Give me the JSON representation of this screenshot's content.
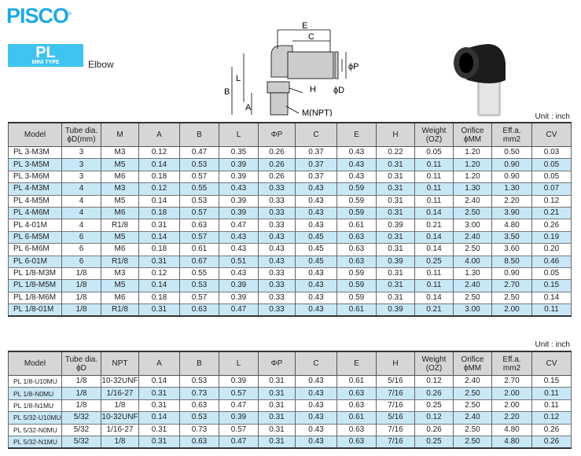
{
  "brand": {
    "logo": "PISCO"
  },
  "series": {
    "code": "PL",
    "subtitle": "MINI TYPE",
    "type": "Elbow"
  },
  "diagram": {
    "labels": [
      "E",
      "C",
      "B",
      "L",
      "A",
      "H",
      "M(NPT)",
      "ϕP",
      "ϕD"
    ]
  },
  "table1": {
    "unit": "Unit : inch",
    "headers": [
      "Model",
      "Tube dia.\nϕD(mm)",
      "M",
      "A",
      "B",
      "L",
      "ΦP",
      "C",
      "E",
      "H",
      "Weight\n(OZ)",
      "Orifice\nϕMM",
      "Eff.a.\nmm2",
      "CV"
    ],
    "rows": [
      [
        "PL 3-M3M",
        "3",
        "M3",
        "0.12",
        "0.47",
        "0.35",
        "0.26",
        "0.37",
        "0.43",
        "0.22",
        "0.05",
        "1.20",
        "0.50",
        "0.03"
      ],
      [
        "PL 3-M5M",
        "3",
        "M5",
        "0.14",
        "0.53",
        "0.39",
        "0.26",
        "0.37",
        "0.43",
        "0.31",
        "0.11",
        "1.20",
        "0.90",
        "0.05"
      ],
      [
        "PL 3-M6M",
        "3",
        "M6",
        "0.18",
        "0.57",
        "0.39",
        "0.26",
        "0.37",
        "0.43",
        "0.31",
        "0.11",
        "1.20",
        "0.90",
        "0.05"
      ],
      [
        "PL 4-M3M",
        "4",
        "M3",
        "0.12",
        "0.55",
        "0.43",
        "0.33",
        "0.43",
        "0.59",
        "0.31",
        "0.11",
        "1.30",
        "1.30",
        "0.07"
      ],
      [
        "PL 4-M5M",
        "4",
        "M5",
        "0.14",
        "0.53",
        "0.39",
        "0.33",
        "0.43",
        "0.59",
        "0.31",
        "0.11",
        "2.40",
        "2.20",
        "0.12"
      ],
      [
        "PL 4-M6M",
        "4",
        "M6",
        "0.18",
        "0.57",
        "0.39",
        "0.33",
        "0.43",
        "0.59",
        "0.31",
        "0.14",
        "2.50",
        "3.90",
        "0.21"
      ],
      [
        "PL 4-01M",
        "4",
        "R1/8",
        "0.31",
        "0.63",
        "0.47",
        "0.33",
        "0.43",
        "0.61",
        "0.39",
        "0.21",
        "3.00",
        "4.80",
        "0.26"
      ],
      [
        "PL 6-M5M",
        "6",
        "M5",
        "0.14",
        "0.57",
        "0.43",
        "0.43",
        "0.45",
        "0.63",
        "0.31",
        "0.14",
        "2.40",
        "3.50",
        "0.19"
      ],
      [
        "PL 6-M6M",
        "6",
        "M6",
        "0.18",
        "0.61",
        "0.43",
        "0.43",
        "0.45",
        "0.63",
        "0.31",
        "0.14",
        "2.50",
        "3.60",
        "0.20"
      ],
      [
        "PL 6-01M",
        "6",
        "R1/8",
        "0.31",
        "0.67",
        "0.51",
        "0.43",
        "0.45",
        "0.63",
        "0.39",
        "0.25",
        "4.00",
        "8.50",
        "0.46"
      ],
      [
        "PL 1/8-M3M",
        "1/8",
        "M3",
        "0.12",
        "0.55",
        "0.43",
        "0.33",
        "0.43",
        "0.59",
        "0.31",
        "0.11",
        "1.30",
        "0.90",
        "0.05"
      ],
      [
        "PL 1/8-M5M",
        "1/8",
        "M5",
        "0.14",
        "0.53",
        "0.39",
        "0.33",
        "0.43",
        "0.59",
        "0.31",
        "0.11",
        "2.40",
        "2.70",
        "0.15"
      ],
      [
        "PL 1/8-M6M",
        "1/8",
        "M6",
        "0.18",
        "0.57",
        "0.39",
        "0.33",
        "0.43",
        "0.59",
        "0.31",
        "0.14",
        "2.50",
        "2.50",
        "0.14"
      ],
      [
        "PL 1/8-01M",
        "1/8",
        "R1/8",
        "0.31",
        "0.63",
        "0.47",
        "0.33",
        "0.43",
        "0.61",
        "0.39",
        "0.21",
        "3.00",
        "2.00",
        "0.11"
      ]
    ]
  },
  "table2": {
    "unit": "Unit : inch",
    "headers": [
      "Model",
      "Tube dia.\nϕD",
      "NPT",
      "A",
      "B",
      "L",
      "ΦP",
      "C",
      "E",
      "H",
      "Weight\n(OZ)",
      "Orifice\nϕMM",
      "Eff.a.\nmm2",
      "CV"
    ],
    "rows": [
      [
        "PL 1/8-U10MU",
        "1/8",
        "10-32UNF",
        "0.14",
        "0.53",
        "0.39",
        "0.31",
        "0.43",
        "0.61",
        "5/16",
        "0.12",
        "2.40",
        "2.70",
        "0.15"
      ],
      [
        "PL 1/8-N0MU",
        "1/8",
        "1/16-27",
        "0.31",
        "0.73",
        "0.57",
        "0.31",
        "0.43",
        "0.63",
        "7/16",
        "0.26",
        "2.50",
        "2.00",
        "0.11"
      ],
      [
        "PL 1/8-N1MU",
        "1/8",
        "1/8",
        "0.31",
        "0.63",
        "0.47",
        "0.31",
        "0.43",
        "0.63",
        "7/16",
        "0.25",
        "2.50",
        "2.00",
        "0.11"
      ],
      [
        "PL 5/32-U10MU",
        "5/32",
        "10-32UNF",
        "0.14",
        "0.53",
        "0.39",
        "0.31",
        "0.43",
        "0.61",
        "5/16",
        "0.12",
        "2.40",
        "2.20",
        "0.12"
      ],
      [
        "PL 5/32-N0MU",
        "5/32",
        "1/16-27",
        "0.31",
        "0.73",
        "0.57",
        "0.31",
        "0.43",
        "0.63",
        "7/16",
        "0.26",
        "2.50",
        "4.80",
        "0.26"
      ],
      [
        "PL 5/32-N1MU",
        "5/32",
        "1/8",
        "0.31",
        "0.63",
        "0.47",
        "0.31",
        "0.43",
        "0.63",
        "7/16",
        "0.25",
        "2.50",
        "4.80",
        "0.26"
      ]
    ]
  },
  "colors": {
    "brand": "#1fa9e6",
    "row_alt": "#c8e8f6",
    "header": "#d6d6d6"
  }
}
